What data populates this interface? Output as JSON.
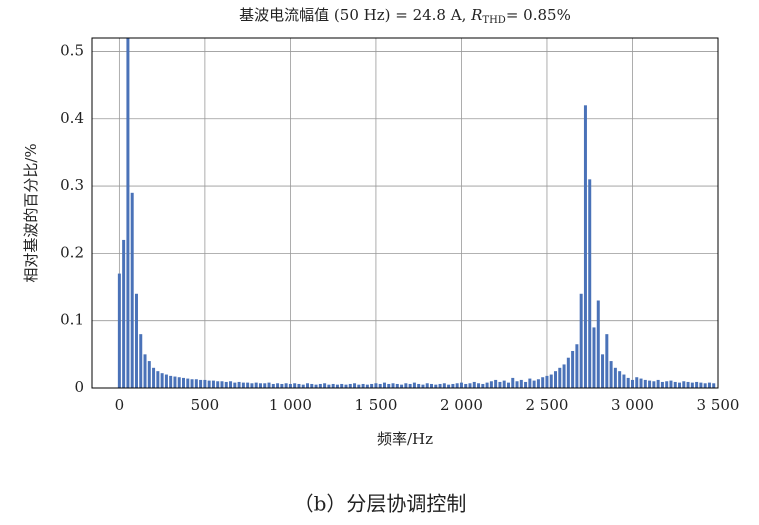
{
  "chart_data": {
    "type": "bar",
    "title_main": "基波电流幅值 (50 Hz) = 24.8 A, ",
    "title_r": "R",
    "title_sub": "THD",
    "title_tail": "= 0.85%",
    "x_label": "频率/Hz",
    "y_label": "相对基波的百分比/%",
    "caption": "（b）分层协调控制",
    "color": "#4a72b8",
    "grid": true,
    "xlim": [
      -160,
      3500
    ],
    "ylim": [
      0,
      0.52
    ],
    "yticks": [
      0,
      0.1,
      0.2,
      0.3,
      0.4,
      0.5
    ],
    "xticks": [
      0,
      500,
      {
        "value": 1000,
        "label": "1 000"
      },
      {
        "value": 1500,
        "label": "1 500"
      },
      {
        "value": 2000,
        "label": "2 000"
      },
      {
        "value": 2500,
        "label": "2 500"
      },
      {
        "value": 3000,
        "label": "3 000"
      },
      {
        "value": 3500,
        "label": "3 500"
      }
    ],
    "x": [
      0,
      25,
      50,
      75,
      100,
      125,
      150,
      175,
      200,
      225,
      250,
      275,
      300,
      325,
      350,
      375,
      400,
      425,
      450,
      475,
      500,
      525,
      550,
      575,
      600,
      625,
      650,
      675,
      700,
      725,
      750,
      775,
      800,
      825,
      850,
      875,
      900,
      925,
      950,
      975,
      1000,
      1025,
      1050,
      1075,
      1100,
      1125,
      1150,
      1175,
      1200,
      1225,
      1250,
      1275,
      1300,
      1325,
      1350,
      1375,
      1400,
      1425,
      1450,
      1475,
      1500,
      1525,
      1550,
      1575,
      1600,
      1625,
      1650,
      1675,
      1700,
      1725,
      1750,
      1775,
      1800,
      1825,
      1850,
      1875,
      1900,
      1925,
      1950,
      1975,
      2000,
      2025,
      2050,
      2075,
      2100,
      2125,
      2150,
      2175,
      2200,
      2225,
      2250,
      2275,
      2300,
      2325,
      2350,
      2375,
      2400,
      2425,
      2450,
      2475,
      2500,
      2525,
      2550,
      2575,
      2600,
      2625,
      2650,
      2675,
      2700,
      2725,
      2750,
      2775,
      2800,
      2825,
      2850,
      2875,
      2900,
      2925,
      2950,
      2975,
      3000,
      3025,
      3050,
      3075,
      3100,
      3125,
      3150,
      3175,
      3200,
      3225,
      3250,
      3275,
      3300,
      3325,
      3350,
      3375,
      3400,
      3425,
      3450,
      3475
    ],
    "values": [
      0.17,
      0.22,
      0.52,
      0.29,
      0.14,
      0.08,
      0.05,
      0.04,
      0.03,
      0.025,
      0.022,
      0.02,
      0.018,
      0.017,
      0.016,
      0.015,
      0.014,
      0.013,
      0.013,
      0.012,
      0.012,
      0.011,
      0.011,
      0.01,
      0.01,
      0.009,
      0.01,
      0.008,
      0.009,
      0.008,
      0.008,
      0.007,
      0.008,
      0.007,
      0.007,
      0.008,
      0.006,
      0.007,
      0.006,
      0.007,
      0.006,
      0.007,
      0.006,
      0.005,
      0.007,
      0.006,
      0.005,
      0.006,
      0.007,
      0.005,
      0.006,
      0.005,
      0.006,
      0.005,
      0.006,
      0.007,
      0.005,
      0.006,
      0.005,
      0.006,
      0.007,
      0.006,
      0.008,
      0.006,
      0.007,
      0.006,
      0.005,
      0.007,
      0.006,
      0.008,
      0.006,
      0.005,
      0.007,
      0.006,
      0.005,
      0.006,
      0.007,
      0.005,
      0.006,
      0.007,
      0.008,
      0.006,
      0.007,
      0.009,
      0.007,
      0.006,
      0.008,
      0.01,
      0.012,
      0.009,
      0.011,
      0.008,
      0.015,
      0.01,
      0.012,
      0.009,
      0.014,
      0.011,
      0.013,
      0.016,
      0.018,
      0.02,
      0.025,
      0.03,
      0.035,
      0.045,
      0.055,
      0.065,
      0.14,
      0.42,
      0.31,
      0.09,
      0.13,
      0.05,
      0.08,
      0.04,
      0.03,
      0.025,
      0.02,
      0.015,
      0.012,
      0.016,
      0.014,
      0.012,
      0.011,
      0.01,
      0.012,
      0.009,
      0.01,
      0.011,
      0.009,
      0.008,
      0.01,
      0.009,
      0.008,
      0.009,
      0.008,
      0.007,
      0.008,
      0.007
    ]
  }
}
